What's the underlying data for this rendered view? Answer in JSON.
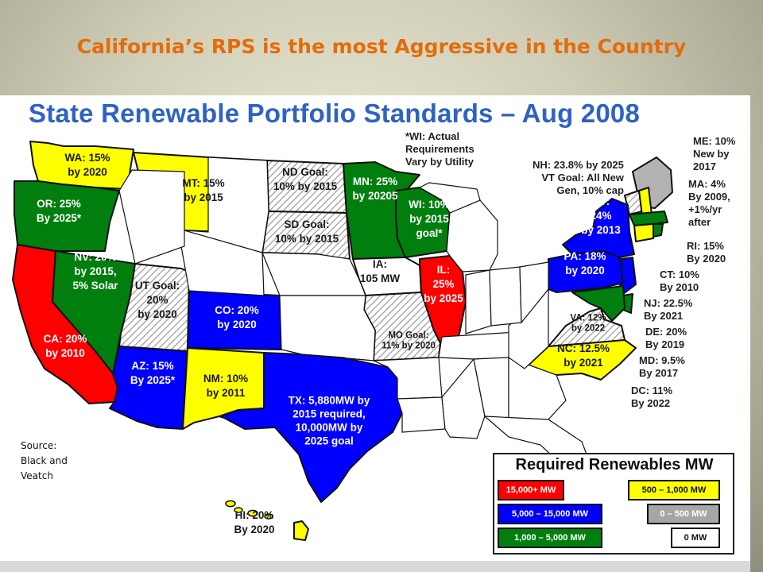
{
  "slide": {
    "title": "California’s RPS is the most Aggressive in the Country"
  },
  "map": {
    "heading": "State Renewable Portfolio Standards – Aug 2008",
    "colors": {
      "red": "#ff0000",
      "blue": "#0000ff",
      "green": "#007f0e",
      "yellow": "#ffff00",
      "gray": "#b3b3b3",
      "white": "#ffffff",
      "hatch": "#d8d8c4"
    },
    "states": [
      {
        "id": "WA",
        "tier": "yellow",
        "lines": [
          "WA: 15%",
          "by 2020"
        ]
      },
      {
        "id": "OR",
        "tier": "green",
        "lines": [
          "OR: 25%",
          "By 2025*"
        ]
      },
      {
        "id": "CA",
        "tier": "red",
        "lines": [
          "CA: 20%",
          "by 2010"
        ]
      },
      {
        "id": "NV",
        "tier": "green",
        "lines": [
          "NV: 20%",
          "by 2015,",
          "5% Solar"
        ]
      },
      {
        "id": "UT",
        "tier": "hatch",
        "lines": [
          "UT Goal:",
          "20%",
          "by 2020"
        ]
      },
      {
        "id": "MT",
        "tier": "yellow",
        "lines": [
          "MT: 15%",
          "by 2015"
        ]
      },
      {
        "id": "CO",
        "tier": "blue",
        "lines": [
          "CO: 20%",
          "by 2020"
        ]
      },
      {
        "id": "AZ",
        "tier": "blue",
        "lines": [
          "AZ: 15%",
          "By 2025*"
        ]
      },
      {
        "id": "NM",
        "tier": "yellow",
        "lines": [
          "NM: 10%",
          "by 2011"
        ]
      },
      {
        "id": "TX",
        "tier": "blue",
        "lines": [
          "TX: 5,880MW by",
          "2015 required,",
          "10,000MW by",
          "2025 goal"
        ]
      },
      {
        "id": "ND",
        "tier": "hatch",
        "lines": [
          "ND Goal:",
          "10% by 2015"
        ]
      },
      {
        "id": "SD",
        "tier": "hatch",
        "lines": [
          "SD Goal:",
          "10% by 2015"
        ]
      },
      {
        "id": "MN",
        "tier": "green",
        "lines": [
          "MN: 25%",
          "by 20205"
        ]
      },
      {
        "id": "WI",
        "tier": "green",
        "lines": [
          "WI: 10%",
          "by 2015",
          "goal*"
        ]
      },
      {
        "id": "IA",
        "tier": "white",
        "lines": [
          "IA:",
          "105 MW"
        ]
      },
      {
        "id": "IL",
        "tier": "red",
        "lines": [
          "IL:",
          "25%",
          "by 2025"
        ]
      },
      {
        "id": "MO",
        "tier": "hatch",
        "lines": [
          "MO Goal:",
          "11% by 2020"
        ]
      },
      {
        "id": "NY",
        "tier": "blue",
        "lines": [
          "NY:",
          "24%",
          "by 2013"
        ]
      },
      {
        "id": "PA",
        "tier": "blue",
        "lines": [
          "PA: 18%",
          "by 2020"
        ]
      },
      {
        "id": "VA",
        "tier": "hatch",
        "lines": [
          "VA: 12%",
          "by 2022"
        ]
      },
      {
        "id": "NC",
        "tier": "yellow",
        "lines": [
          "NC: 12.5%",
          "by 2021"
        ]
      },
      {
        "id": "HI",
        "tier": "yellow",
        "lines": [
          "HI: 20%",
          "By 2020"
        ]
      }
    ],
    "notes": {
      "wi_note": [
        "*WI: Actual",
        "Requirements",
        "Vary by Utility"
      ],
      "nh_vt": [
        "NH: 23.8% by 2025",
        "VT Goal: All New",
        "Gen, 10% cap"
      ],
      "me": [
        "ME: 10%",
        "New by",
        "2017"
      ],
      "ma": [
        "MA: 4%",
        "By 2009,",
        "+1%/yr",
        "after"
      ],
      "ri": [
        "RI: 15%",
        "By 2020"
      ],
      "ct": [
        "CT: 10%",
        "By 2010"
      ],
      "nj": [
        "NJ: 22.5%",
        "By 2021"
      ],
      "de": [
        "DE: 20%",
        "By 2019"
      ],
      "md": [
        "MD: 9.5%",
        "By 2017"
      ],
      "dc": [
        "DC: 11%",
        "By 2022"
      ]
    },
    "source": [
      "Source:",
      "Black and",
      "Veatch"
    ],
    "legend": {
      "title": "Required Renewables MW",
      "items": [
        {
          "label": "15,000+ MW",
          "color": "#ff0000",
          "text_color": "#ffffff"
        },
        {
          "label": "5,000 – 15,000 MW",
          "color": "#0000ff",
          "text_color": "#ffffff"
        },
        {
          "label": "1,000 – 5,000 MW",
          "color": "#007f0e",
          "text_color": "#ffffff"
        },
        {
          "label": "500 – 1,000 MW",
          "color": "#ffff00",
          "text_color": "#111111"
        },
        {
          "label": "0 – 500 MW",
          "color": "#a6a6a6",
          "text_color": "#ffffff"
        },
        {
          "label": "0 MW",
          "color": "#ffffff",
          "text_color": "#111111"
        }
      ]
    }
  }
}
